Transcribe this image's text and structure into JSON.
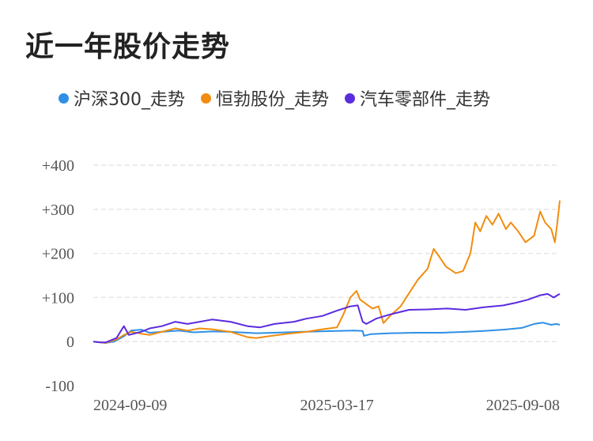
{
  "title": "近一年股价走势",
  "legend": [
    {
      "label": "沪深300_走势",
      "color": "#2f8fe6"
    },
    {
      "label": "恒勃股份_走势",
      "color": "#f28c0f"
    },
    {
      "label": "汽车零部件_走势",
      "color": "#5b2bdf"
    }
  ],
  "chart_data": {
    "type": "line",
    "title": "近一年股价走势",
    "xlabel": "",
    "ylabel": "",
    "ylim": [
      -100,
      400
    ],
    "yticks": [
      {
        "value": 400,
        "label": "+400"
      },
      {
        "value": 300,
        "label": "+300"
      },
      {
        "value": 200,
        "label": "+200"
      },
      {
        "value": 100,
        "label": "+100"
      },
      {
        "value": 0,
        "label": "0"
      },
      {
        "value": -100,
        "label": "-100"
      }
    ],
    "xrange": [
      "2024-08-30",
      "2025-09-15"
    ],
    "xticks": [
      "2024-09-09",
      "2025-03-17",
      "2025-09-08"
    ],
    "grid": true,
    "legend_position": "top",
    "series": [
      {
        "name": "沪深300_走势",
        "color": "#2f8fe6",
        "points": [
          [
            "2024-08-30",
            0
          ],
          [
            "2024-09-05",
            -2
          ],
          [
            "2024-09-09",
            -3
          ],
          [
            "2024-09-16",
            0
          ],
          [
            "2024-09-24",
            12
          ],
          [
            "2024-09-30",
            25
          ],
          [
            "2024-10-08",
            27
          ],
          [
            "2024-10-15",
            20
          ],
          [
            "2024-10-25",
            22
          ],
          [
            "2024-11-08",
            25
          ],
          [
            "2024-11-20",
            21
          ],
          [
            "2024-12-05",
            23
          ],
          [
            "2024-12-20",
            22
          ],
          [
            "2025-01-10",
            19
          ],
          [
            "2025-01-25",
            20
          ],
          [
            "2025-02-15",
            22
          ],
          [
            "2025-03-01",
            23
          ],
          [
            "2025-03-17",
            24
          ],
          [
            "2025-03-31",
            25
          ],
          [
            "2025-04-07",
            24
          ],
          [
            "2025-04-08",
            13
          ],
          [
            "2025-04-14",
            17
          ],
          [
            "2025-04-30",
            19
          ],
          [
            "2025-05-20",
            20
          ],
          [
            "2025-06-10",
            20
          ],
          [
            "2025-06-30",
            22
          ],
          [
            "2025-07-15",
            24
          ],
          [
            "2025-07-31",
            27
          ],
          [
            "2025-08-15",
            31
          ],
          [
            "2025-08-25",
            40
          ],
          [
            "2025-09-01",
            43
          ],
          [
            "2025-09-08",
            38
          ],
          [
            "2025-09-12",
            40
          ],
          [
            "2025-09-15",
            38
          ]
        ]
      },
      {
        "name": "恒勃股份_走势",
        "color": "#f28c0f",
        "points": [
          [
            "2024-08-30",
            0
          ],
          [
            "2024-09-05",
            -2
          ],
          [
            "2024-09-09",
            -3
          ],
          [
            "2024-09-18",
            5
          ],
          [
            "2024-09-24",
            15
          ],
          [
            "2024-09-30",
            22
          ],
          [
            "2024-10-08",
            18
          ],
          [
            "2024-10-15",
            15
          ],
          [
            "2024-10-25",
            22
          ],
          [
            "2024-11-05",
            30
          ],
          [
            "2024-11-15",
            25
          ],
          [
            "2024-11-25",
            30
          ],
          [
            "2024-12-05",
            28
          ],
          [
            "2024-12-20",
            22
          ],
          [
            "2025-01-03",
            10
          ],
          [
            "2025-01-10",
            8
          ],
          [
            "2025-01-20",
            12
          ],
          [
            "2025-02-05",
            18
          ],
          [
            "2025-02-20",
            22
          ],
          [
            "2025-03-05",
            28
          ],
          [
            "2025-03-17",
            32
          ],
          [
            "2025-03-22",
            60
          ],
          [
            "2025-03-28",
            100
          ],
          [
            "2025-04-02",
            115
          ],
          [
            "2025-04-05",
            95
          ],
          [
            "2025-04-10",
            85
          ],
          [
            "2025-04-15",
            75
          ],
          [
            "2025-04-20",
            80
          ],
          [
            "2025-04-24",
            42
          ],
          [
            "2025-04-30",
            60
          ],
          [
            "2025-05-08",
            80
          ],
          [
            "2025-05-15",
            110
          ],
          [
            "2025-05-22",
            140
          ],
          [
            "2025-05-30",
            165
          ],
          [
            "2025-06-04",
            210
          ],
          [
            "2025-06-08",
            195
          ],
          [
            "2025-06-14",
            170
          ],
          [
            "2025-06-22",
            155
          ],
          [
            "2025-06-28",
            160
          ],
          [
            "2025-07-04",
            200
          ],
          [
            "2025-07-08",
            270
          ],
          [
            "2025-07-12",
            250
          ],
          [
            "2025-07-17",
            285
          ],
          [
            "2025-07-22",
            265
          ],
          [
            "2025-07-27",
            290
          ],
          [
            "2025-08-02",
            255
          ],
          [
            "2025-08-06",
            270
          ],
          [
            "2025-08-12",
            250
          ],
          [
            "2025-08-18",
            225
          ],
          [
            "2025-08-25",
            240
          ],
          [
            "2025-08-30",
            295
          ],
          [
            "2025-09-03",
            270
          ],
          [
            "2025-09-08",
            255
          ],
          [
            "2025-09-11",
            225
          ],
          [
            "2025-09-13",
            270
          ],
          [
            "2025-09-15",
            320
          ]
        ]
      },
      {
        "name": "汽车零部件_走势",
        "color": "#5b2bdf",
        "points": [
          [
            "2024-08-30",
            0
          ],
          [
            "2024-09-05",
            -2
          ],
          [
            "2024-09-09",
            -2
          ],
          [
            "2024-09-18",
            8
          ],
          [
            "2024-09-24",
            35
          ],
          [
            "2024-09-28",
            15
          ],
          [
            "2024-10-08",
            22
          ],
          [
            "2024-10-15",
            30
          ],
          [
            "2024-10-25",
            35
          ],
          [
            "2024-11-05",
            45
          ],
          [
            "2024-11-15",
            40
          ],
          [
            "2024-11-25",
            45
          ],
          [
            "2024-12-05",
            50
          ],
          [
            "2024-12-20",
            45
          ],
          [
            "2025-01-03",
            35
          ],
          [
            "2025-01-13",
            32
          ],
          [
            "2025-01-25",
            40
          ],
          [
            "2025-02-10",
            45
          ],
          [
            "2025-02-20",
            52
          ],
          [
            "2025-03-05",
            58
          ],
          [
            "2025-03-17",
            70
          ],
          [
            "2025-03-28",
            80
          ],
          [
            "2025-04-03",
            82
          ],
          [
            "2025-04-07",
            45
          ],
          [
            "2025-04-10",
            40
          ],
          [
            "2025-04-18",
            52
          ],
          [
            "2025-04-30",
            62
          ],
          [
            "2025-05-15",
            72
          ],
          [
            "2025-05-30",
            73
          ],
          [
            "2025-06-15",
            75
          ],
          [
            "2025-06-30",
            72
          ],
          [
            "2025-07-15",
            78
          ],
          [
            "2025-07-31",
            82
          ],
          [
            "2025-08-10",
            88
          ],
          [
            "2025-08-20",
            95
          ],
          [
            "2025-08-30",
            105
          ],
          [
            "2025-09-05",
            108
          ],
          [
            "2025-09-10",
            100
          ],
          [
            "2025-09-13",
            105
          ],
          [
            "2025-09-15",
            108
          ]
        ]
      }
    ]
  }
}
